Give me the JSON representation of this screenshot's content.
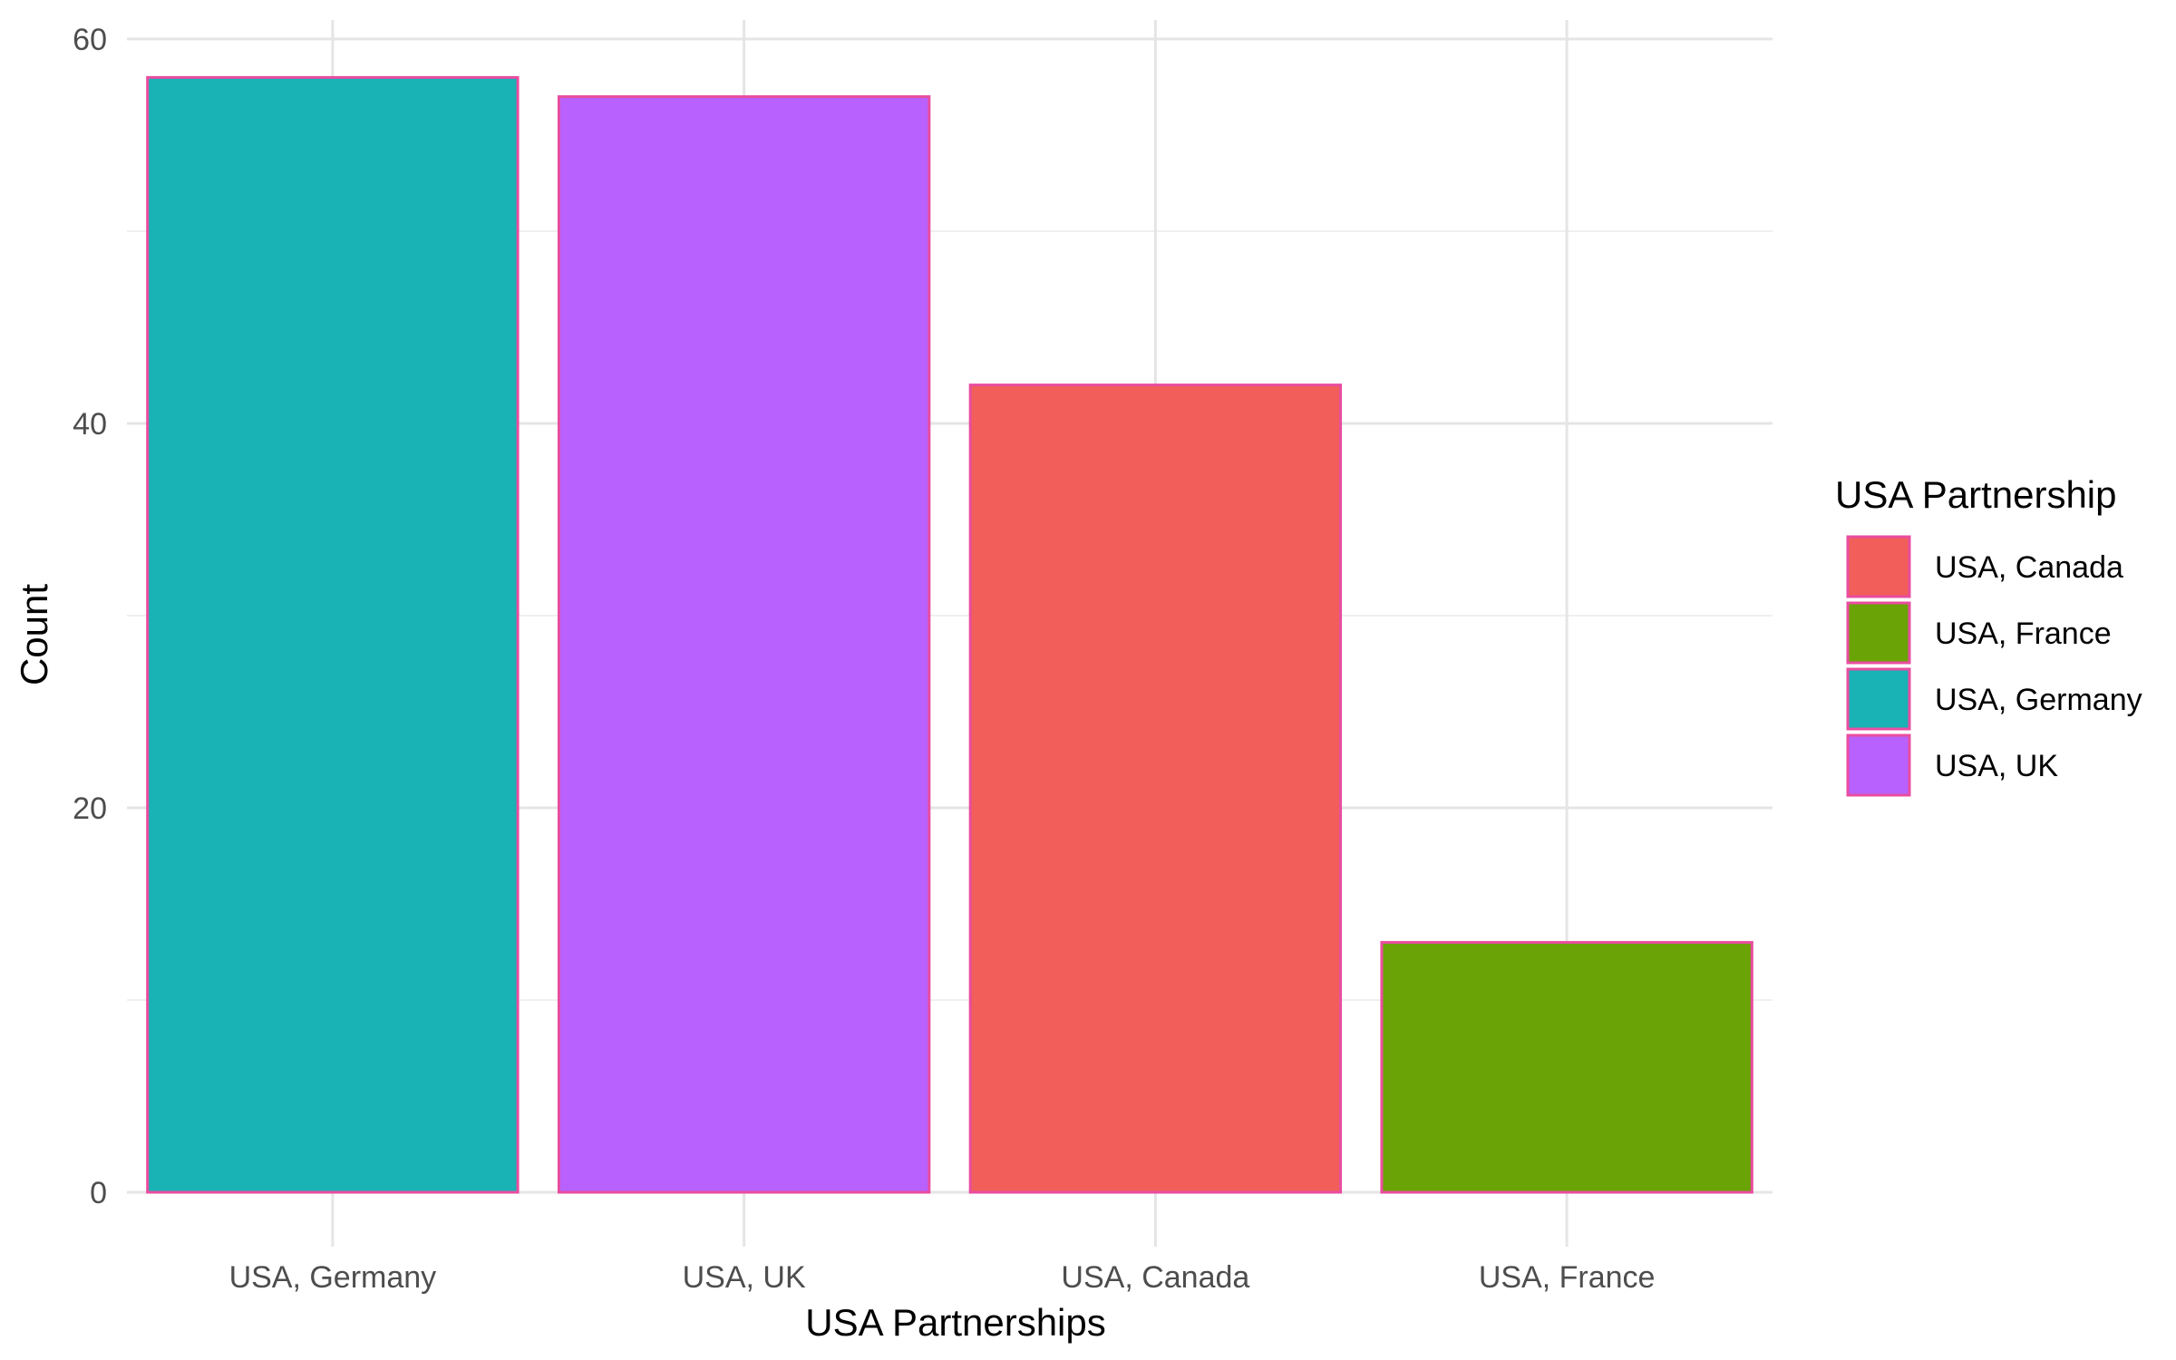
{
  "chart_data": {
    "type": "bar",
    "title": "",
    "xlabel": "USA Partnerships",
    "ylabel": "Count",
    "categories": [
      "USA, Germany",
      "USA, UK",
      "USA, Canada",
      "USA, France"
    ],
    "values": [
      58,
      57,
      42,
      13
    ],
    "bar_colors": [
      "#19b2b5",
      "#b861fe",
      "#f25e59",
      "#6aa305"
    ],
    "bar_outline_color": "#e84da0",
    "ylim": [
      0,
      60
    ],
    "yticks": [
      0,
      20,
      40,
      60
    ],
    "yticks_minor": [
      10,
      30,
      50
    ],
    "grid": true,
    "legend": {
      "title": "USA Partnership",
      "position": "right",
      "entries": [
        {
          "label": "USA, Canada",
          "color": "#f25e59"
        },
        {
          "label": "USA, France",
          "color": "#6aa305"
        },
        {
          "label": "USA, Germany",
          "color": "#19b2b5"
        },
        {
          "label": "USA, UK",
          "color": "#b861fe"
        }
      ]
    }
  }
}
